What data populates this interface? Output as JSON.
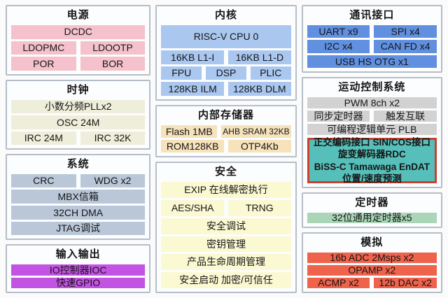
{
  "palette": {
    "power_pink": "#f4c1cc",
    "clock_cream": "#efeeda",
    "system_bluegray": "#b9c7d8",
    "io_magenta": "#c353e2",
    "core_blue": "#aac7f0",
    "memory_tan": "#f6e2bb",
    "security_yellow": "#fbf9d2",
    "comm_blue": "#6190e0",
    "motion_gray": "#d2d2d2",
    "encoder_teal": "#56bfba",
    "encoder_border_red": "#c9402f",
    "timer_green": "#abd5b7",
    "analog_red": "#ef624b",
    "panel_border_gray": "#b5bec8"
  },
  "sections": {
    "power": {
      "title": "电源",
      "rows": [
        [
          "DCDC"
        ],
        [
          "LDOPMC",
          "LDOOTP"
        ],
        [
          "POR",
          "BOR"
        ]
      ]
    },
    "clock": {
      "title": "时钟",
      "rows": [
        [
          "小数分频PLLx2"
        ],
        [
          "OSC 24M"
        ],
        [
          "IRC 24M",
          "IRC 32K"
        ]
      ]
    },
    "system": {
      "title": "系统",
      "rows": [
        [
          "CRC",
          "WDG x2"
        ],
        [
          "MBX信箱"
        ],
        [
          "32CH DMA"
        ],
        [
          "JTAG调试"
        ]
      ]
    },
    "io": {
      "title": "输入输出",
      "rows": [
        [
          "IO控制器IOC"
        ],
        [
          "快速GPIO"
        ]
      ]
    },
    "core": {
      "title": "内核",
      "rows": [
        [
          "RISC-V CPU 0"
        ],
        [
          "16KB L1-I",
          "16KB L1-D"
        ],
        [
          "FPU",
          "DSP",
          "PLIC"
        ],
        [
          "128KB ILM",
          "128KB DLM"
        ]
      ]
    },
    "memory": {
      "title": "内部存储器",
      "rows": [
        [
          "Flash 1MB",
          "AHB SRAM 32KB"
        ],
        [
          "ROM128KB",
          "OTP4Kb"
        ]
      ]
    },
    "security": {
      "title": "安全",
      "rows": [
        [
          "EXIP 在线解密执行"
        ],
        [
          "AES/SHA",
          "TRNG"
        ],
        [
          "安全调试"
        ],
        [
          "密钥管理"
        ],
        [
          "产品生命周期管理"
        ],
        [
          "安全启动 加密/可信任"
        ]
      ]
    },
    "comm": {
      "title": "通讯接口",
      "rows": [
        [
          "UART x9",
          "SPI x4"
        ],
        [
          "I2C x4",
          "CAN FD x4"
        ],
        [
          "USB HS OTG x1"
        ]
      ]
    },
    "motion": {
      "title": "运动控制系统",
      "rows": [
        [
          "PWM 8ch x2"
        ],
        [
          "同步定时器",
          "触发互联"
        ],
        [
          "可编程逻辑单元 PLB"
        ]
      ],
      "callout": [
        "正交编码接口 SIN/COS接口",
        "旋变解码器RDC",
        "BiSS-C Tamawaga EnDAT",
        "位置/速度预测"
      ]
    },
    "timer": {
      "title": "定时器",
      "rows": [
        [
          "32位通用定时器x5"
        ]
      ]
    },
    "analog": {
      "title": "模拟",
      "rows": [
        [
          "16b ADC 2Msps x2"
        ],
        [
          "OPAMP x2"
        ],
        [
          "ACMP x2",
          "12b DAC x2"
        ]
      ]
    }
  }
}
